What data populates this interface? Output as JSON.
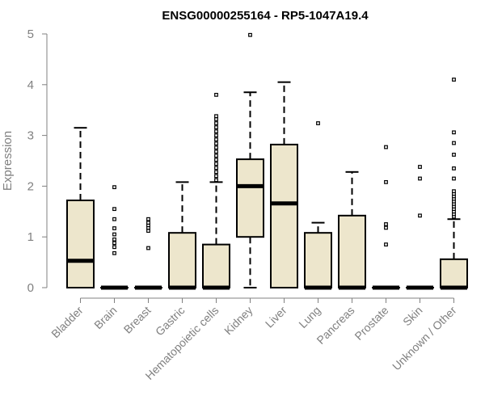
{
  "chart_data": {
    "type": "boxplot",
    "title": "ENSG00000255164 - RP5-1047A19.4",
    "ylabel": "Expression",
    "xlabel": "",
    "ylim": [
      0,
      5
    ],
    "yticks": [
      0,
      1,
      2,
      3,
      4,
      5
    ],
    "grid": false,
    "box_fill": "#ede6cc",
    "categories": [
      "Bladder",
      "Brain",
      "Breast",
      "Gastric",
      "Hematopoietic cells",
      "Kidney",
      "Liver",
      "Lung",
      "Pancreas",
      "Prostate",
      "Skin",
      "Unknown / Other"
    ],
    "boxes": [
      {
        "category": "Bladder",
        "whisker_low": 0,
        "q1": 0,
        "median": 0.53,
        "q3": 1.72,
        "whisker_high": 3.15,
        "outliers": []
      },
      {
        "category": "Brain",
        "whisker_low": 0,
        "q1": 0,
        "median": 0,
        "q3": 0,
        "whisker_high": 0,
        "outliers": [
          0.68,
          0.8,
          0.88,
          0.95,
          1.05,
          1.17,
          1.35,
          1.55,
          1.98
        ]
      },
      {
        "category": "Breast",
        "whisker_low": 0,
        "q1": 0,
        "median": 0,
        "q3": 0,
        "whisker_high": 0,
        "outliers": [
          0.78,
          1.12,
          1.18,
          1.23,
          1.28,
          1.35
        ]
      },
      {
        "category": "Gastric",
        "whisker_low": 0,
        "q1": 0,
        "median": 0,
        "q3": 1.08,
        "whisker_high": 2.08,
        "outliers": []
      },
      {
        "category": "Hematopoietic cells",
        "whisker_low": 0,
        "q1": 0,
        "median": 0,
        "q3": 0.85,
        "whisker_high": 2.08,
        "outliers": [
          2.12,
          2.2,
          2.28,
          2.36,
          2.44,
          2.52,
          2.6,
          2.68,
          2.76,
          2.84,
          2.92,
          3.0,
          3.08,
          3.16,
          3.24,
          3.32,
          3.38,
          3.8
        ]
      },
      {
        "category": "Kidney",
        "whisker_low": 0,
        "q1": 1.0,
        "median": 2.0,
        "q3": 2.53,
        "whisker_high": 3.85,
        "outliers": [
          4.98
        ]
      },
      {
        "category": "Liver",
        "whisker_low": 0,
        "q1": 0,
        "median": 1.66,
        "q3": 2.82,
        "whisker_high": 4.05,
        "outliers": []
      },
      {
        "category": "Lung",
        "whisker_low": 0,
        "q1": 0,
        "median": 0,
        "q3": 1.08,
        "whisker_high": 1.28,
        "outliers": [
          3.24
        ]
      },
      {
        "category": "Pancreas",
        "whisker_low": 0,
        "q1": 0,
        "median": 0,
        "q3": 1.42,
        "whisker_high": 2.28,
        "outliers": []
      },
      {
        "category": "Prostate",
        "whisker_low": 0,
        "q1": 0,
        "median": 0,
        "q3": 0,
        "whisker_high": 0,
        "outliers": [
          0.85,
          1.18,
          1.25,
          2.08,
          2.77
        ]
      },
      {
        "category": "Skin",
        "whisker_low": 0,
        "q1": 0,
        "median": 0,
        "q3": 0,
        "whisker_high": 0,
        "outliers": [
          1.42,
          2.15,
          2.38
        ]
      },
      {
        "category": "Unknown / Other",
        "whisker_low": 0,
        "q1": 0,
        "median": 0,
        "q3": 0.56,
        "whisker_high": 1.35,
        "outliers": [
          1.4,
          1.45,
          1.5,
          1.55,
          1.6,
          1.65,
          1.7,
          1.75,
          1.8,
          1.85,
          1.9,
          2.15,
          2.35,
          2.62,
          2.85,
          3.06,
          4.1
        ]
      }
    ]
  }
}
